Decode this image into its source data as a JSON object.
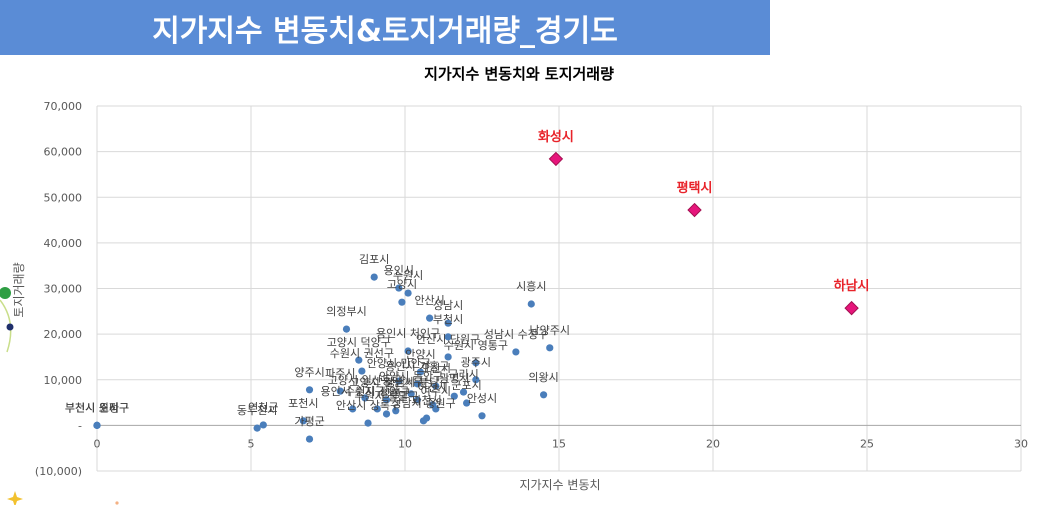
{
  "header": {
    "title": "지가지수 변동치&토지거래량_경기도"
  },
  "colors": {
    "banner": "#5A8CD6",
    "grid": "#D9D9D9",
    "axis": "#A6A6A6"
  },
  "chart_data": {
    "type": "scatter",
    "title": "지가지수 변동치와 토지거래량",
    "xlabel": "지가지수 변동치",
    "ylabel": "토지거래량",
    "xlim": [
      0,
      30
    ],
    "ylim": [
      -10000,
      70000
    ],
    "grid": true,
    "x_ticks": [
      0,
      5,
      10,
      15,
      20,
      25,
      30
    ],
    "x_tick_labels": [
      "0",
      "5",
      "10",
      "15",
      "20",
      "25",
      "30"
    ],
    "y_ticks": [
      70000,
      60000,
      50000,
      40000,
      30000,
      20000,
      10000,
      0,
      -10000
    ],
    "y_tick_labels": [
      "70,000",
      "60,000",
      "50,000",
      "40,000",
      "30,000",
      "20,000",
      "10,000",
      "-",
      "(10,000)"
    ],
    "series": [
      {
        "marker": "circle",
        "color": "#4A7EBB",
        "points": [
          {
            "label": "김포시",
            "x": 9.0,
            "y": 32500
          },
          {
            "label": "용인시",
            "x": 9.8,
            "y": 30100
          },
          {
            "label": "수원시",
            "x": 10.1,
            "y": 29000
          },
          {
            "label": "고양시",
            "x": 9.9,
            "y": 27000
          },
          {
            "label": "시흥시",
            "x": 14.1,
            "y": 26600
          },
          {
            "label": "안산시",
            "x": 10.8,
            "y": 23500
          },
          {
            "label": "성남시",
            "x": 11.4,
            "y": 22400
          },
          {
            "label": "의정부시",
            "x": 8.1,
            "y": 21100
          },
          {
            "label": "부천시",
            "x": 11.4,
            "y": 19400
          },
          {
            "label": "남양주시",
            "x": 14.7,
            "y": 17000
          },
          {
            "label": "성남시 수정구",
            "x": 13.6,
            "y": 16100
          },
          {
            "label": "용인시 처인구",
            "x": 10.1,
            "y": 16300
          },
          {
            "label": "안산시 단원구",
            "x": 11.4,
            "y": 15000
          },
          {
            "label": "고양시 덕양구",
            "x": 8.5,
            "y": 14300
          },
          {
            "label": "수원시 영통구",
            "x": 12.3,
            "y": 13700
          },
          {
            "label": "수원시 권선구",
            "x": 8.6,
            "y": 11900
          },
          {
            "label": "안양시",
            "x": 10.5,
            "y": 11700
          },
          {
            "label": "광주시",
            "x": 12.3,
            "y": 10000
          },
          {
            "label": "안양시 만안구",
            "x": 9.8,
            "y": 9700
          },
          {
            "label": "용인시 기흥구",
            "x": 10.4,
            "y": 9100
          },
          {
            "label": "오산시",
            "x": 11.0,
            "y": 8600
          },
          {
            "label": "양주시",
            "x": 6.9,
            "y": 7800
          },
          {
            "label": "파주시",
            "x": 7.9,
            "y": 7500
          },
          {
            "label": "구리시",
            "x": 11.9,
            "y": 7300
          },
          {
            "label": "안양시 동안구",
            "x": 10.2,
            "y": 6900
          },
          {
            "label": "의왕시",
            "x": 14.5,
            "y": 6700
          },
          {
            "label": "광명시",
            "x": 11.6,
            "y": 6400
          },
          {
            "label": "고양시 일산동구",
            "x": 8.7,
            "y": 6000
          },
          {
            "label": "고양시 일산서구",
            "x": 9.4,
            "y": 5600
          },
          {
            "label": "성남시 분당구",
            "x": 10.4,
            "y": 5600
          },
          {
            "label": "군포시",
            "x": 12.0,
            "y": 4900
          },
          {
            "label": "이천시",
            "x": 10.9,
            "y": 4500
          },
          {
            "label": "여주시",
            "x": 11.0,
            "y": 3600
          },
          {
            "label": "수원시 장안구",
            "x": 9.1,
            "y": 3600
          },
          {
            "label": "용인시 수지구",
            "x": 8.3,
            "y": 3600
          },
          {
            "label": "양평군",
            "x": 9.7,
            "y": 3200
          },
          {
            "label": "수원시 팔달구",
            "x": 9.4,
            "y": 2500
          },
          {
            "label": "안성시",
            "x": 12.5,
            "y": 2100
          },
          {
            "label": "과천시",
            "x": 10.7,
            "y": 1600
          },
          {
            "label": "성남시 중원구",
            "x": 10.6,
            "y": 1000
          },
          {
            "label": "포천시",
            "x": 6.7,
            "y": 1000
          },
          {
            "label": "안산시 상록구",
            "x": 8.8,
            "y": 500
          },
          {
            "label": "연천군",
            "x": 5.4,
            "y": 100
          },
          {
            "label": "동두천시",
            "x": 5.2,
            "y": -600
          },
          {
            "label": "가평군",
            "x": 6.9,
            "y": -3000
          },
          {
            "label": "부천시 원미구",
            "x": 0,
            "y": 0
          },
          {
            "label": "부천시 소사구",
            "x": 0,
            "y": 0
          },
          {
            "label": "부천시 오정구",
            "x": 0,
            "y": 0
          }
        ]
      },
      {
        "marker": "diamond",
        "color": "#E6157B",
        "stroke": "#A31050",
        "label_color": "#E8232A",
        "points": [
          {
            "label": "화성시",
            "x": 14.9,
            "y": 58400
          },
          {
            "label": "평택시",
            "x": 19.4,
            "y": 47200
          },
          {
            "label": "하남시",
            "x": 24.5,
            "y": 25700
          }
        ]
      }
    ]
  }
}
